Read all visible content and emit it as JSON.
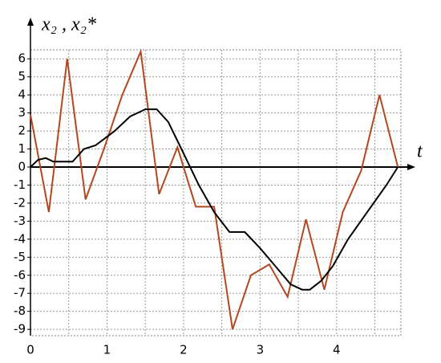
{
  "chart_data": {
    "type": "line",
    "ylabel": "x₂ , x₂*",
    "xlabel": "t",
    "xlim": [
      0,
      4.84
    ],
    "ylim": [
      -9.35,
      6.5
    ],
    "xticks": [
      0,
      1,
      2,
      3,
      4
    ],
    "yticks": [
      6,
      5,
      4,
      3,
      2,
      1,
      0,
      -1,
      -2,
      -3,
      -4,
      -5,
      -6,
      -7,
      -8,
      -9
    ],
    "grid": true,
    "series": [
      {
        "color": "#b5471f",
        "x": [
          0,
          0.24,
          0.48,
          0.72,
          0.96,
          1.2,
          1.44,
          1.68,
          1.92,
          2.16,
          2.4,
          2.64,
          2.88,
          3.12,
          3.36,
          3.6,
          3.84,
          4.08,
          4.32,
          4.56,
          4.8
        ],
        "values": [
          2.9,
          -2.5,
          6,
          -1.8,
          1.0,
          4,
          6.4,
          -1.5,
          1.1,
          -2.2,
          -2.2,
          -9,
          -6,
          -5.4,
          -7.2,
          -2.9,
          -6.8,
          -2.5,
          -0.2,
          4,
          0
        ]
      },
      {
        "color": "#000000",
        "x": [
          0,
          0.1,
          0.2,
          0.3,
          0.55,
          0.7,
          0.85,
          1.1,
          1.3,
          1.5,
          1.65,
          1.8,
          1.95,
          2.2,
          2.4,
          2.6,
          2.8,
          3.0,
          3.2,
          3.4,
          3.55,
          3.65,
          3.8,
          3.95,
          4.15,
          4.4,
          4.65,
          4.8
        ],
        "values": [
          0,
          0.4,
          0.5,
          0.3,
          0.3,
          1.0,
          1.2,
          2.0,
          2.8,
          3.2,
          3.2,
          2.5,
          1.2,
          -1,
          -2.5,
          -3.6,
          -3.6,
          -4.5,
          -5.5,
          -6.5,
          -6.8,
          -6.8,
          -6.3,
          -5.5,
          -4,
          -2.5,
          -1,
          0
        ]
      }
    ]
  }
}
